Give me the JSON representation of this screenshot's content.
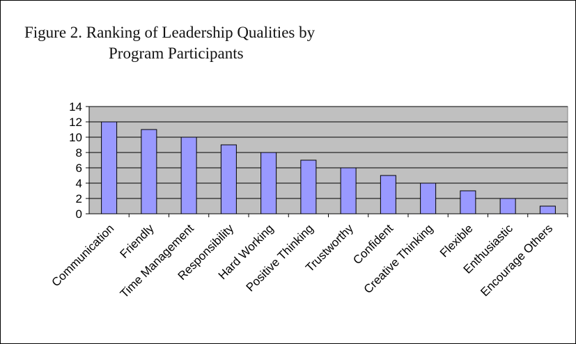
{
  "chart_data": {
    "type": "bar",
    "title_line1": "Figure 2. Ranking of Leadership Qualities by",
    "title_line2": "Program Participants",
    "xlabel": "",
    "ylabel": "",
    "categories": [
      "Communication",
      "Friendly",
      "Time Management",
      "Responsibility",
      "Hard Working",
      "Positive Thinking",
      "Trustworthy",
      "Confident",
      "Creative Thinking",
      "Flexible",
      "Enthusiastic",
      "Encourage Others"
    ],
    "values": [
      12,
      11,
      10,
      9,
      8,
      7,
      6,
      5,
      4,
      3,
      2,
      1
    ],
    "ylim": [
      0,
      14
    ],
    "yticks": [
      0,
      2,
      4,
      6,
      8,
      10,
      12,
      14
    ],
    "grid": true,
    "legend": "none",
    "colors": {
      "plot_background": "#c0c0c0",
      "bar_fill": "#9999ff",
      "bar_stroke": "#000000",
      "gridline": "#000000"
    }
  }
}
